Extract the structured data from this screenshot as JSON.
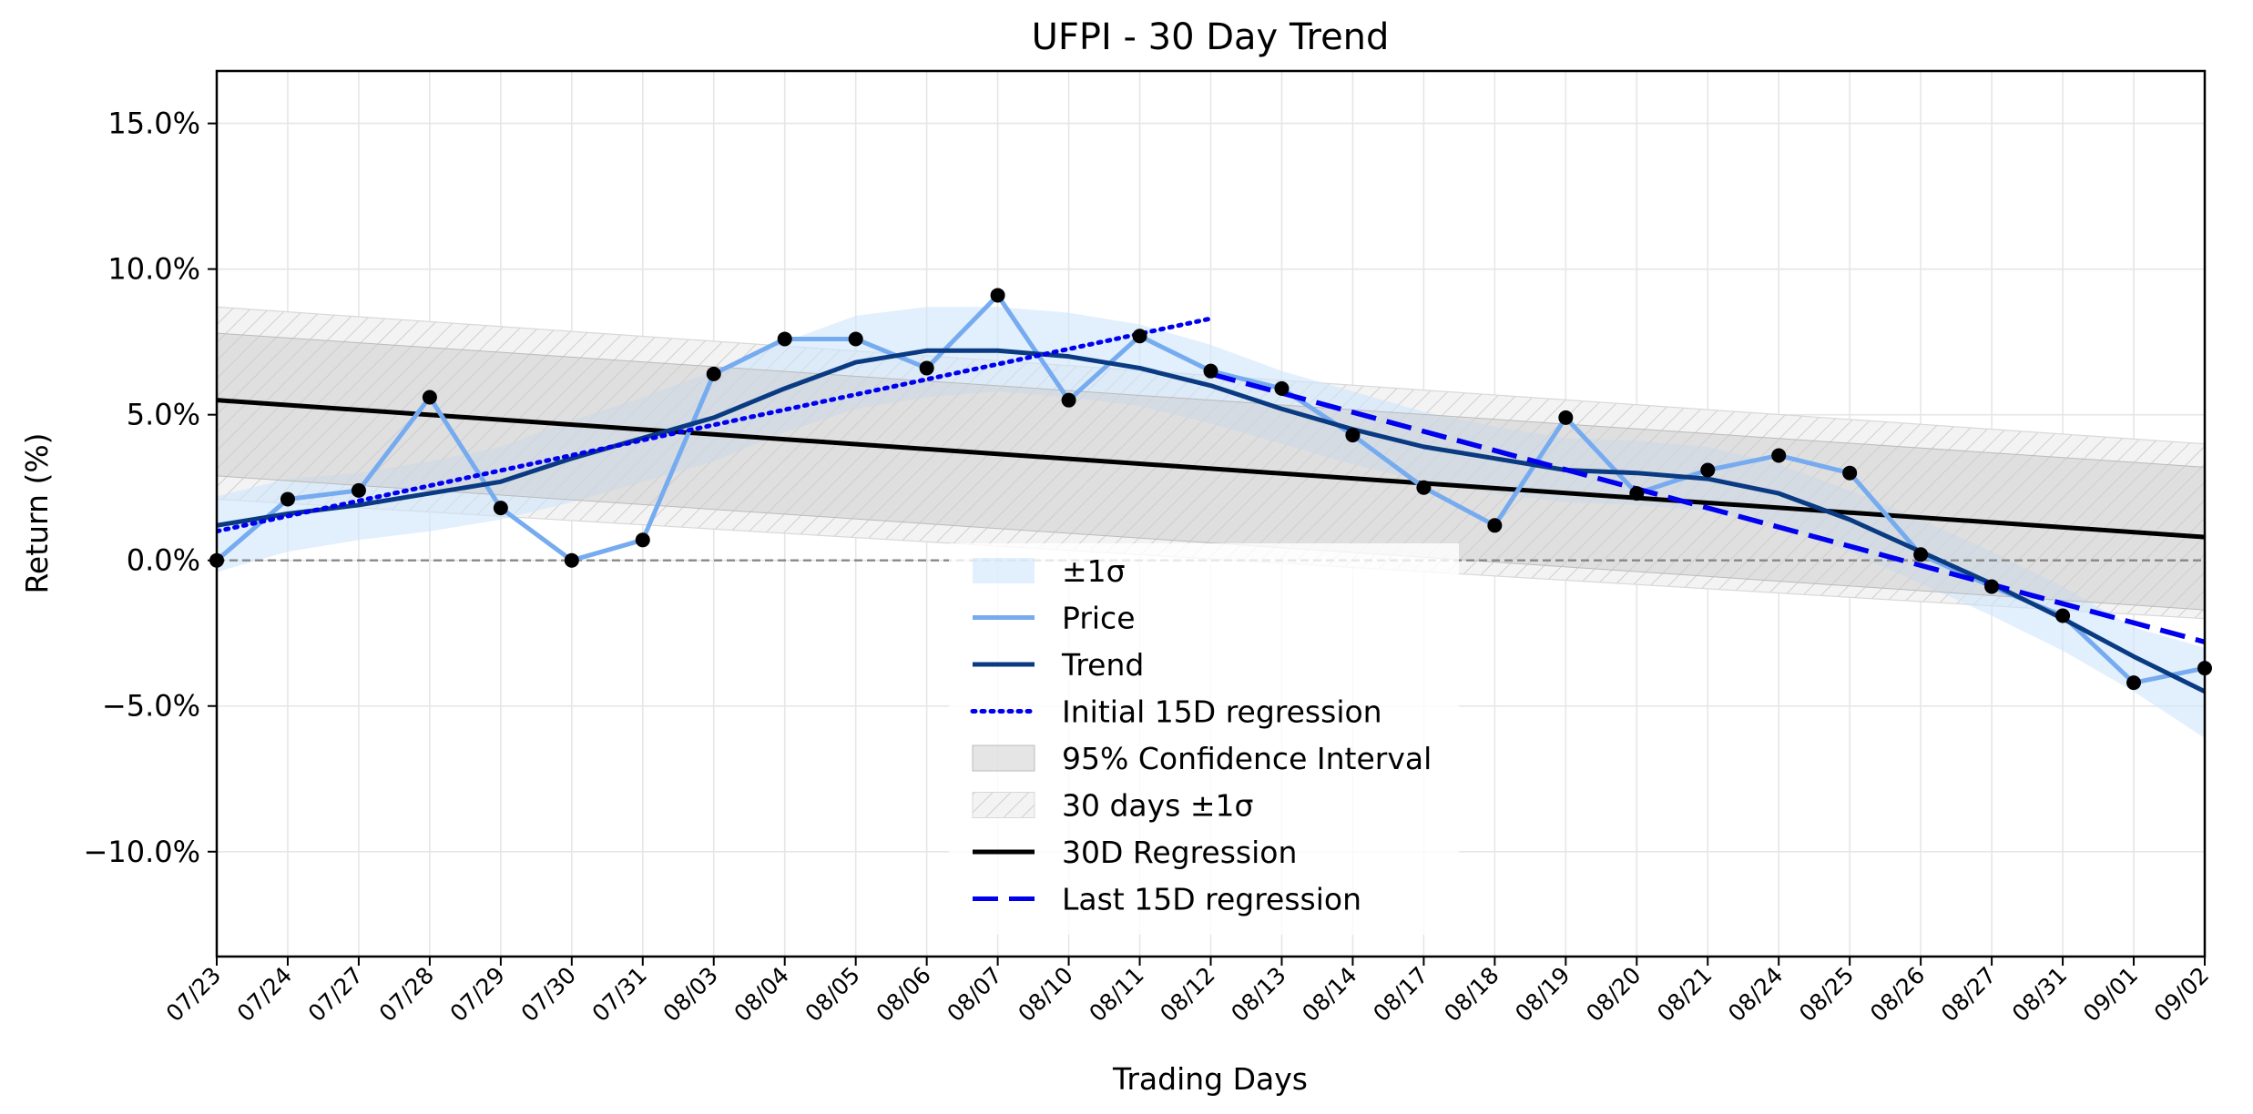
{
  "chart_data": {
    "type": "line",
    "title": "UFPI - 30 Day Trend",
    "xlabel": "Trading Days",
    "ylabel": "Return (%)",
    "ylim": [
      -13.6,
      16.8
    ],
    "yticks": [
      15.0,
      10.0,
      5.0,
      0.0,
      -5.0,
      -10.0
    ],
    "ytick_labels": [
      "15.0%",
      "10.0%",
      "5.0%",
      "0.0%",
      "−5.0%",
      "−10.0%"
    ],
    "grid": true,
    "legend_position": "lower center",
    "categories": [
      "07/23",
      "07/24",
      "07/27",
      "07/28",
      "07/29",
      "07/30",
      "07/31",
      "08/03",
      "08/04",
      "08/05",
      "08/06",
      "08/07",
      "08/10",
      "08/11",
      "08/12",
      "08/13",
      "08/14",
      "08/17",
      "08/18",
      "08/19",
      "08/20",
      "08/21",
      "08/24",
      "08/25",
      "08/26",
      "08/27",
      "08/31",
      "09/01",
      "09/02"
    ],
    "series": [
      {
        "name": "Price",
        "color": "#76abf0",
        "values": [
          0.0,
          2.1,
          2.4,
          5.6,
          1.8,
          0.0,
          0.7,
          6.4,
          7.6,
          7.6,
          6.6,
          9.1,
          5.5,
          7.7,
          6.5,
          5.9,
          4.3,
          2.5,
          1.2,
          4.9,
          2.3,
          3.1,
          3.6,
          3.0,
          0.2,
          -0.9,
          -1.9,
          -4.2,
          -3.7
        ]
      },
      {
        "name": "Trend",
        "color": "#0a3a82",
        "values": [
          1.2,
          1.6,
          1.9,
          2.3,
          2.7,
          3.5,
          4.2,
          4.9,
          5.9,
          6.8,
          7.2,
          7.2,
          7.0,
          6.6,
          6.0,
          5.2,
          4.5,
          3.9,
          3.5,
          3.1,
          3.0,
          2.8,
          2.3,
          1.4,
          0.3,
          -0.8,
          -2.0,
          -3.3,
          -4.5
        ]
      },
      {
        "name": "Initial 15D regression",
        "color": "#0000ee",
        "style": "dotted",
        "x_range": [
          "07/23",
          "08/12"
        ],
        "endpoints": [
          1.0,
          8.3
        ]
      },
      {
        "name": "30D Regression",
        "color": "#000000",
        "x_range": [
          "07/23",
          "09/02"
        ],
        "endpoints": [
          5.5,
          0.8
        ]
      },
      {
        "name": "Last 15D regression",
        "color": "#0000ee",
        "style": "dashed",
        "x_range": [
          "08/12",
          "09/02"
        ],
        "endpoints": [
          6.4,
          -2.8
        ]
      }
    ],
    "bands": [
      {
        "name": "±1σ",
        "color": "#cfe4fb",
        "lower": [
          -0.4,
          0.3,
          0.7,
          1.0,
          1.4,
          2.0,
          2.7,
          3.4,
          4.4,
          5.2,
          5.6,
          5.8,
          5.6,
          5.3,
          4.7,
          4.0,
          3.3,
          2.7,
          2.3,
          2.0,
          1.9,
          1.7,
          1.2,
          0.3,
          -0.8,
          -1.9,
          -3.1,
          -4.5,
          -6.1
        ],
        "upper": [
          2.2,
          2.8,
          3.0,
          3.4,
          3.9,
          4.8,
          5.6,
          6.5,
          7.5,
          8.4,
          8.7,
          8.7,
          8.5,
          8.1,
          7.4,
          6.5,
          5.8,
          5.1,
          4.6,
          4.2,
          4.1,
          3.9,
          3.3,
          2.4,
          1.4,
          0.3,
          -0.9,
          -2.3,
          -3.0
        ]
      },
      {
        "name": "95% Confidence Interval",
        "color": "#cccccc",
        "x_range": [
          "07/23",
          "09/02"
        ],
        "upper": [
          7.8,
          3.2
        ],
        "lower": [
          2.9,
          -1.7
        ]
      },
      {
        "name": "30 days ±1σ",
        "color": "#dddddd",
        "hatch": true,
        "x_range": [
          "07/23",
          "09/02"
        ],
        "upper": [
          8.7,
          4.0
        ],
        "lower": [
          2.1,
          -2.0
        ]
      }
    ],
    "reference_line": {
      "y": 0.0,
      "style": "dashed",
      "color": "#888888"
    },
    "legend": [
      "±1σ",
      "Price",
      "Trend",
      "Initial 15D regression",
      "95% Confidence Interval",
      "30 days ±1σ",
      "30D Regression",
      "Last 15D regression"
    ]
  }
}
